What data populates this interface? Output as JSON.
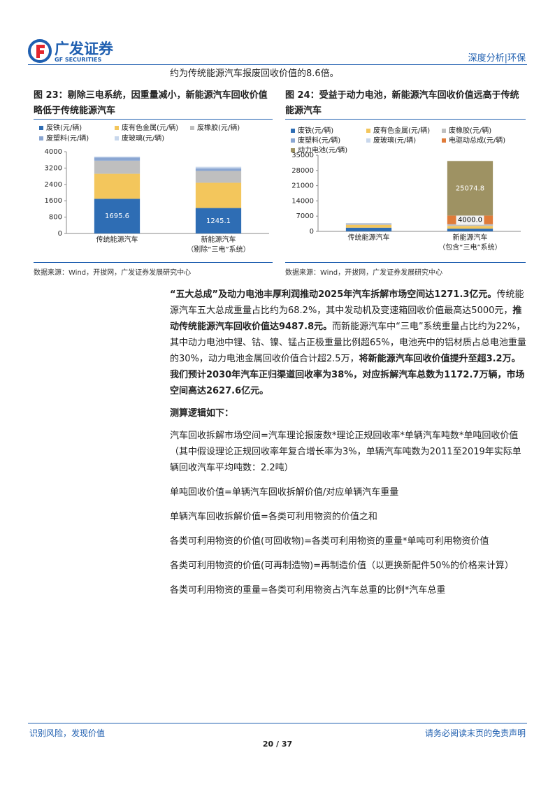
{
  "header": {
    "logo_cn": "广发证券",
    "logo_en": "GF SECURITIES",
    "section": "深度分析|环保"
  },
  "intro": "约为传统能源汽车报废回收价值的8.6倍。",
  "chart_data": [
    {
      "type": "bar",
      "stacked": true,
      "title": "图 23：剔除三电系统，因重量减小，新能源汽车回收价值略低于传统能源汽车",
      "source": "数据来源：Wind，开拔网，广发证券发展研究中心",
      "categories": [
        "传统能源汽车",
        "新能源汽车\n（剔除“三电”系统）"
      ],
      "ylim": [
        0,
        4000
      ],
      "yticks": [
        0,
        800,
        1600,
        2400,
        3200,
        4000
      ],
      "series": [
        {
          "name": "废铁(元/辆)",
          "color": "#2e6db4",
          "values": [
            1695.6,
            1245.1
          ],
          "show_labels": true,
          "label_color": "#ffffff"
        },
        {
          "name": "废有色金属(元/辆)",
          "color": "#f3c65c",
          "values": [
            1225,
            1235
          ]
        },
        {
          "name": "废橡胶(元/辆)",
          "color": "#bfbfbf",
          "values": [
            640,
            580
          ]
        },
        {
          "name": "废塑料(元/辆)",
          "color": "#8aa6d2",
          "values": [
            160,
            120
          ]
        },
        {
          "name": "废玻璃(元/辆)",
          "color": "#c8d7ec",
          "values": [
            40,
            80
          ]
        }
      ]
    },
    {
      "type": "bar",
      "stacked": true,
      "title": "图 24：受益于动力电池，新能源汽车回收价值远高于传统能源汽车",
      "source": "数据来源：Wind，开拔网，广发证券发展研究中心",
      "categories": [
        "传统能源汽车",
        "新能源汽车\n（包含“三电”系统）"
      ],
      "ylim": [
        0,
        35000
      ],
      "yticks": [
        0,
        7000,
        14000,
        21000,
        28000,
        35000
      ],
      "series": [
        {
          "name": "废铁(元/辆)",
          "color": "#2e6db4",
          "values": [
            1695.6,
            1245.1
          ]
        },
        {
          "name": "废有色金属(元/辆)",
          "color": "#f3c65c",
          "values": [
            1225,
            1235
          ]
        },
        {
          "name": "废橡胶(元/辆)",
          "color": "#bfbfbf",
          "values": [
            640,
            580
          ]
        },
        {
          "name": "废塑料(元/辆)",
          "color": "#8aa6d2",
          "values": [
            160,
            120
          ]
        },
        {
          "name": "废玻璃(元/辆)",
          "color": "#c8d7ec",
          "values": [
            40,
            80
          ]
        },
        {
          "name": "电驱动总成(元/辆)",
          "color": "#e07b39",
          "values": [
            0,
            4000
          ],
          "show_labels": true,
          "value_labels": [
            null,
            "4000.0"
          ],
          "label_color": "#000000",
          "label_box": true
        },
        {
          "name": "动力电池(元/辆)",
          "color": "#9e9263",
          "values": [
            0,
            25074.8
          ],
          "show_labels": true,
          "label_color": "#ffffff"
        }
      ]
    }
  ],
  "body": {
    "runs": [
      {
        "text": "“五大总成”及动力电池丰厚利润推动2025年汽车拆解市场空间达1271.3亿元。",
        "bold": true
      },
      {
        "text": "传统能源汽车五大总成重量占比约为68.2%，其中发动机及变速箱回收价值最高达5000元，",
        "bold": false
      },
      {
        "text": "推动传统能源汽车回收价值达9487.8元。",
        "bold": true
      },
      {
        "text": "而新能源汽车中“三电”系统重量占比约为22%，其中动力电池中锂、钴、镍、锰占正极重量比例超65%，电池壳中的铝材质占总电池重量的30%，动力电池金属回收价值合计超2.5万，",
        "bold": false
      },
      {
        "text": "将新能源汽车回收价值提升至超3.2万。我们预计2030年汽车正归渠道回收率为38%，对应拆解汽车总数为1172.7万辆，市场空间高达2627.6亿元。",
        "bold": true
      }
    ],
    "logic_title": "测算逻辑如下：",
    "formulas": [
      "汽车回收拆解市场空间=汽车理论报废数*理论正规回收率*单辆汽车吨数*单吨回收价值（其中假设理论正规回收率年复合增长率为3%，单辆汽车吨数为2011至2019年实际单辆回收汽车平均吨数：2.2吨）",
      "单吨回收价值=单辆汽车回收拆解价值/对应单辆汽车重量",
      "单辆汽车回收拆解价值=各类可利用物资的价值之和",
      "各类可利用物资的价值(可回收物)=各类可利用物资的重量*单吨可利用物资价值",
      "各类可利用物资的价值(可再制造物)=再制造价值（以更换新配件50%的价格来计算）",
      "各类可利用物资的重量=各类可利用物资占汽车总重的比例*汽车总重"
    ]
  },
  "footer": {
    "left": "识别风险，发现价值",
    "right": "请务必阅读末页的免责声明",
    "page": "20 / 37"
  }
}
